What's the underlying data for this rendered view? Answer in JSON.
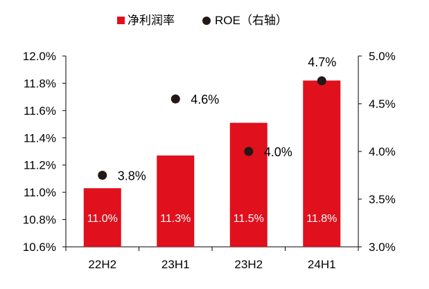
{
  "chart_data": {
    "type": "bar",
    "categories": [
      "22H2",
      "23H1",
      "23H2",
      "24H1"
    ],
    "series": [
      {
        "name": "净利润率",
        "kind": "bar",
        "axis": "left",
        "values": [
          11.03,
          11.27,
          11.51,
          11.82
        ],
        "labels": [
          "11.0%",
          "11.3%",
          "11.5%",
          "11.8%"
        ],
        "color": "#e0101d",
        "label_color": "#ffffff"
      },
      {
        "name": "ROE（右轴）",
        "kind": "scatter",
        "axis": "right",
        "values": [
          3.75,
          4.55,
          4.0,
          4.74
        ],
        "labels": [
          "3.8%",
          "4.6%",
          "4.0%",
          "4.7%"
        ],
        "color": "#231815"
      }
    ],
    "left_axis": {
      "min": 10.6,
      "max": 12.0,
      "ticks": [
        "10.6%",
        "10.8%",
        "11.0%",
        "11.2%",
        "11.4%",
        "11.6%",
        "11.8%",
        "12.0%"
      ]
    },
    "right_axis": {
      "min": 3.0,
      "max": 5.0,
      "ticks": [
        "3.0%",
        "3.5%",
        "4.0%",
        "4.5%",
        "5.0%"
      ]
    },
    "legend_position": "top-center",
    "grid": false,
    "title": "",
    "xlabel": "",
    "ylabel": ""
  }
}
